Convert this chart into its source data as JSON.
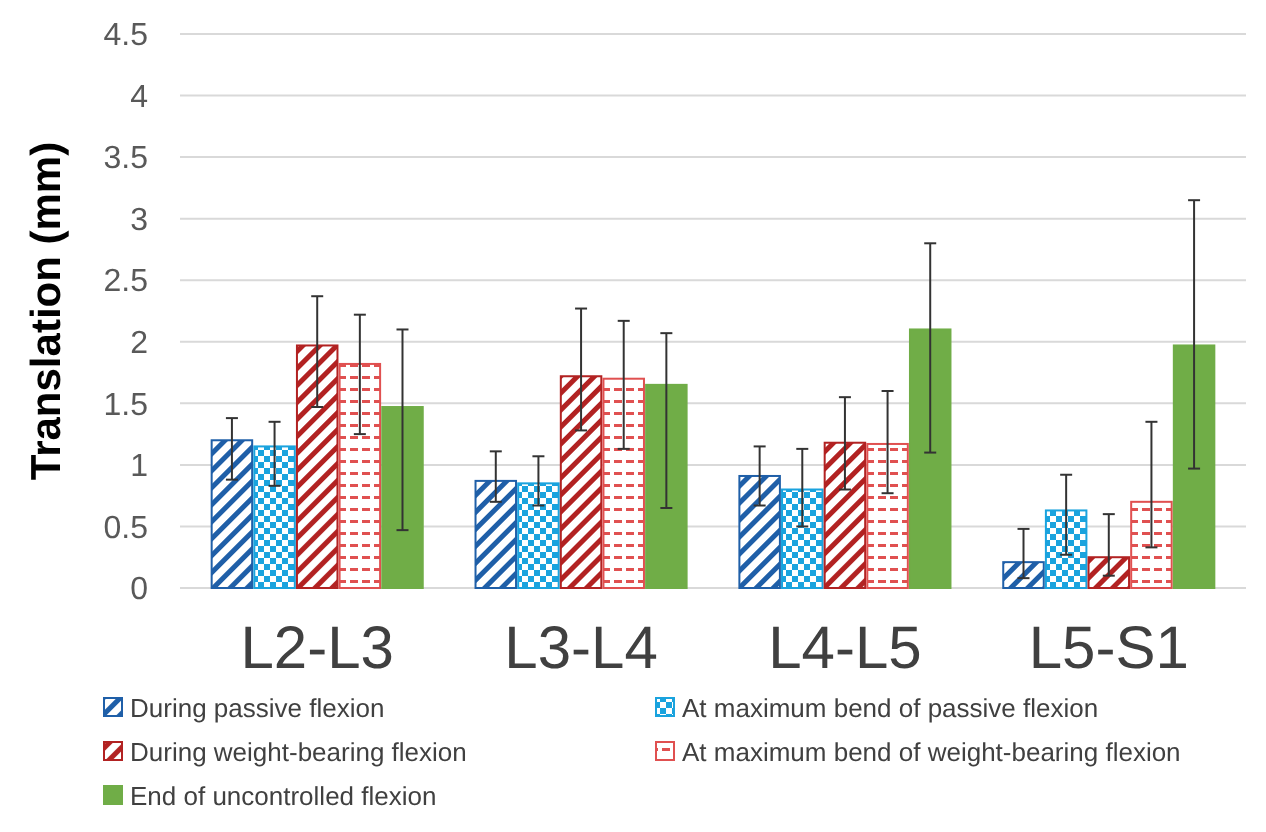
{
  "chart_data": {
    "type": "bar",
    "ylabel": "Translation  (mm)",
    "categories": [
      "L2-L3",
      "L3-L4",
      "L4-L5",
      "L5-S1"
    ],
    "ylim": [
      0,
      4.5
    ],
    "yticks": [
      0,
      0.5,
      1,
      1.5,
      2,
      2.5,
      3,
      3.5,
      4,
      4.5
    ],
    "grid": "y",
    "legend": "bottom",
    "series": [
      {
        "name": "During passive flexion",
        "color": "#1f5fa8",
        "values": [
          1.2,
          0.87,
          0.91,
          0.21
        ],
        "errors": [
          [
            0.88,
            1.38
          ],
          [
            0.7,
            1.11
          ],
          [
            0.67,
            1.15
          ],
          [
            0.08,
            0.48
          ]
        ]
      },
      {
        "name": "At maximum bend of passive flexion",
        "color": "#1aa3de",
        "values": [
          1.15,
          0.85,
          0.8,
          0.63
        ],
        "errors": [
          [
            0.83,
            1.35
          ],
          [
            0.67,
            1.07
          ],
          [
            0.5,
            1.13
          ],
          [
            0.27,
            0.92
          ]
        ]
      },
      {
        "name": "During weight-bearing flexion",
        "color": "#b22222",
        "values": [
          1.97,
          1.72,
          1.18,
          0.25
        ],
        "errors": [
          [
            1.47,
            2.37
          ],
          [
            1.28,
            2.27
          ],
          [
            0.8,
            1.55
          ],
          [
            0.1,
            0.6
          ]
        ]
      },
      {
        "name": "At maximum bend of weight-bearing flexion",
        "color": "#e05050",
        "values": [
          1.82,
          1.7,
          1.17,
          0.7
        ],
        "errors": [
          [
            1.25,
            2.22
          ],
          [
            1.13,
            2.17
          ],
          [
            0.77,
            1.6
          ],
          [
            0.33,
            1.35
          ]
        ]
      },
      {
        "name": "End of uncontrolled flexion",
        "color": "#70ad47",
        "values": [
          1.47,
          1.65,
          2.1,
          1.97
        ],
        "errors": [
          [
            0.47,
            2.1
          ],
          [
            0.65,
            2.07
          ],
          [
            1.1,
            2.8
          ],
          [
            0.97,
            3.15
          ]
        ]
      }
    ]
  }
}
